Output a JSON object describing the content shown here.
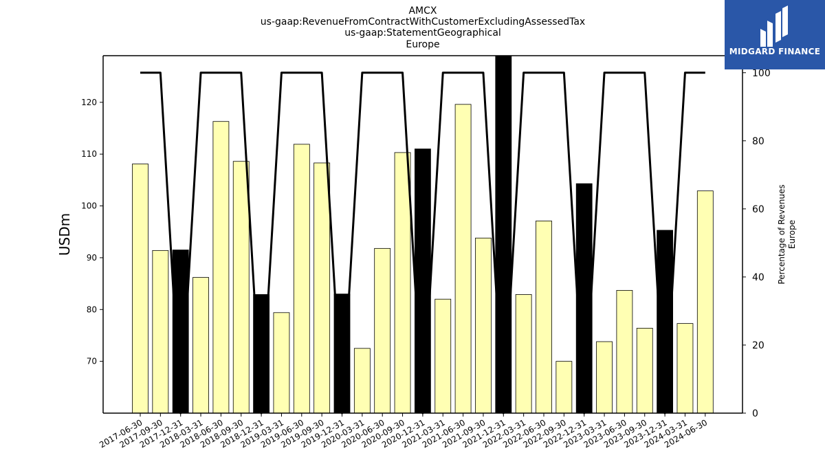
{
  "title_lines": [
    "AMCX",
    "us-gaap:RevenueFromContractWithCustomerExcludingAssessedTax",
    "us-gaap:StatementGeographical",
    "Europe"
  ],
  "logo": {
    "text": "MIDGARD FINANCE",
    "background": "#2a57a8"
  },
  "colors": {
    "bar_fill": "#ffffb3",
    "bar_q4_fill": "#000000",
    "bar_edge": "#000000",
    "line": "#000000"
  },
  "chart_data": {
    "type": "bar",
    "categories": [
      "2017-06-30",
      "2017-09-30",
      "2017-12-31",
      "2018-03-31",
      "2018-06-30",
      "2018-09-30",
      "2018-12-31",
      "2019-03-31",
      "2019-06-30",
      "2019-09-30",
      "2019-12-31",
      "2020-03-31",
      "2020-06-30",
      "2020-09-30",
      "2020-12-31",
      "2021-03-31",
      "2021-06-30",
      "2021-09-30",
      "2021-12-31",
      "2022-03-31",
      "2022-06-30",
      "2022-09-30",
      "2022-12-31",
      "2023-03-31",
      "2023-06-30",
      "2023-09-30",
      "2023-12-31",
      "2024-03-31",
      "2024-06-30"
    ],
    "values": [
      108.1,
      91.4,
      91.5,
      86.2,
      116.3,
      108.6,
      82.9,
      79.4,
      111.9,
      108.3,
      83.0,
      72.5,
      91.8,
      110.3,
      111.0,
      82.0,
      119.6,
      93.8,
      129.0,
      82.9,
      97.1,
      70.0,
      104.3,
      73.8,
      83.7,
      76.4,
      95.3,
      77.3,
      102.9
    ],
    "highlight_categories": [
      "2017-12-31",
      "2018-12-31",
      "2019-12-31",
      "2020-12-31",
      "2021-12-31",
      "2022-12-31",
      "2023-12-31"
    ],
    "ylabel": "USDm",
    "ylim": [
      60,
      129
    ],
    "yticks": [
      70,
      80,
      90,
      100,
      110,
      120
    ],
    "series": [
      {
        "values": [
          100,
          100,
          0,
          100,
          100,
          100,
          0,
          100,
          100,
          100,
          0,
          100,
          100,
          100,
          0,
          100,
          100,
          100,
          0,
          100,
          100,
          100,
          0,
          100,
          100,
          100,
          0,
          100,
          100
        ]
      }
    ],
    "y2label": [
      "Percentage of Revenues",
      "Europe"
    ],
    "y2lim": [
      0,
      105
    ],
    "y2ticks": [
      0,
      20,
      40,
      60,
      80,
      100
    ],
    "grid": false
  }
}
